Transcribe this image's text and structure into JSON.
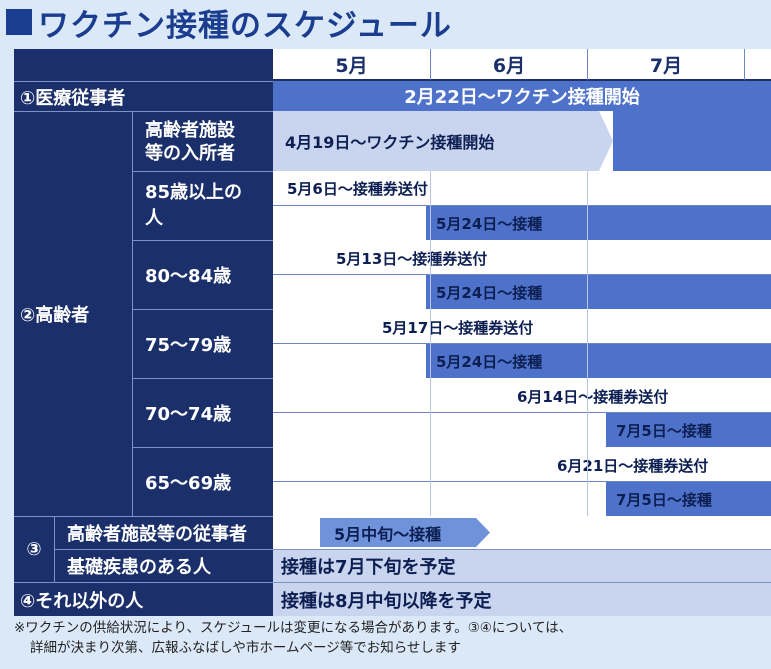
{
  "title": "ワクチン接種のスケジュール",
  "months": [
    "5月",
    "6月",
    "7月"
  ],
  "rows": {
    "medical": {
      "label": "①医療従事者",
      "bar": "2月22日～ワクチン接種開始"
    },
    "elderly": {
      "label": "②高齢者",
      "facility": {
        "label": "高齢者施設等の入所者",
        "label_l1": "高齢者施設",
        "label_l2": "等の入所者",
        "bar": "4月19日～ワクチン接種開始"
      },
      "g85": {
        "label_l1": "85歳以上の",
        "label_l2": "人",
        "voucher": "5月6日～接種券送付",
        "vacc": "5月24日～接種"
      },
      "g80": {
        "label": "80～84歳",
        "voucher": "5月13日～接種券送付",
        "vacc": "5月24日～接種"
      },
      "g75": {
        "label": "75～79歳",
        "voucher": "5月17日～接種券送付",
        "vacc": "5月24日～接種"
      },
      "g70": {
        "label": "70～74歳",
        "voucher": "6月14日～接種券送付",
        "vacc": "7月5日～接種"
      },
      "g65": {
        "label": "65～69歳",
        "voucher": "6月21日～接種券送付",
        "vacc": "7月5日～接種"
      }
    },
    "group3": {
      "label": "③",
      "staff": {
        "label": "高齢者施設等の従事者",
        "bar": "5月中旬～接種"
      },
      "disease": {
        "label": "基礎疾患のある人",
        "bar": "接種は7月下旬を予定"
      }
    },
    "others": {
      "label": "④それ以外の人",
      "bar": "接種は8月中旬以降を予定"
    }
  },
  "footnote": {
    "line1": "※ワクチンの供給状況により、スケジュールは変更になる場合があります。③④については、",
    "line2": "詳細が決まり次第、広報ふなばしや市ホームページ等でお知らせします"
  }
}
